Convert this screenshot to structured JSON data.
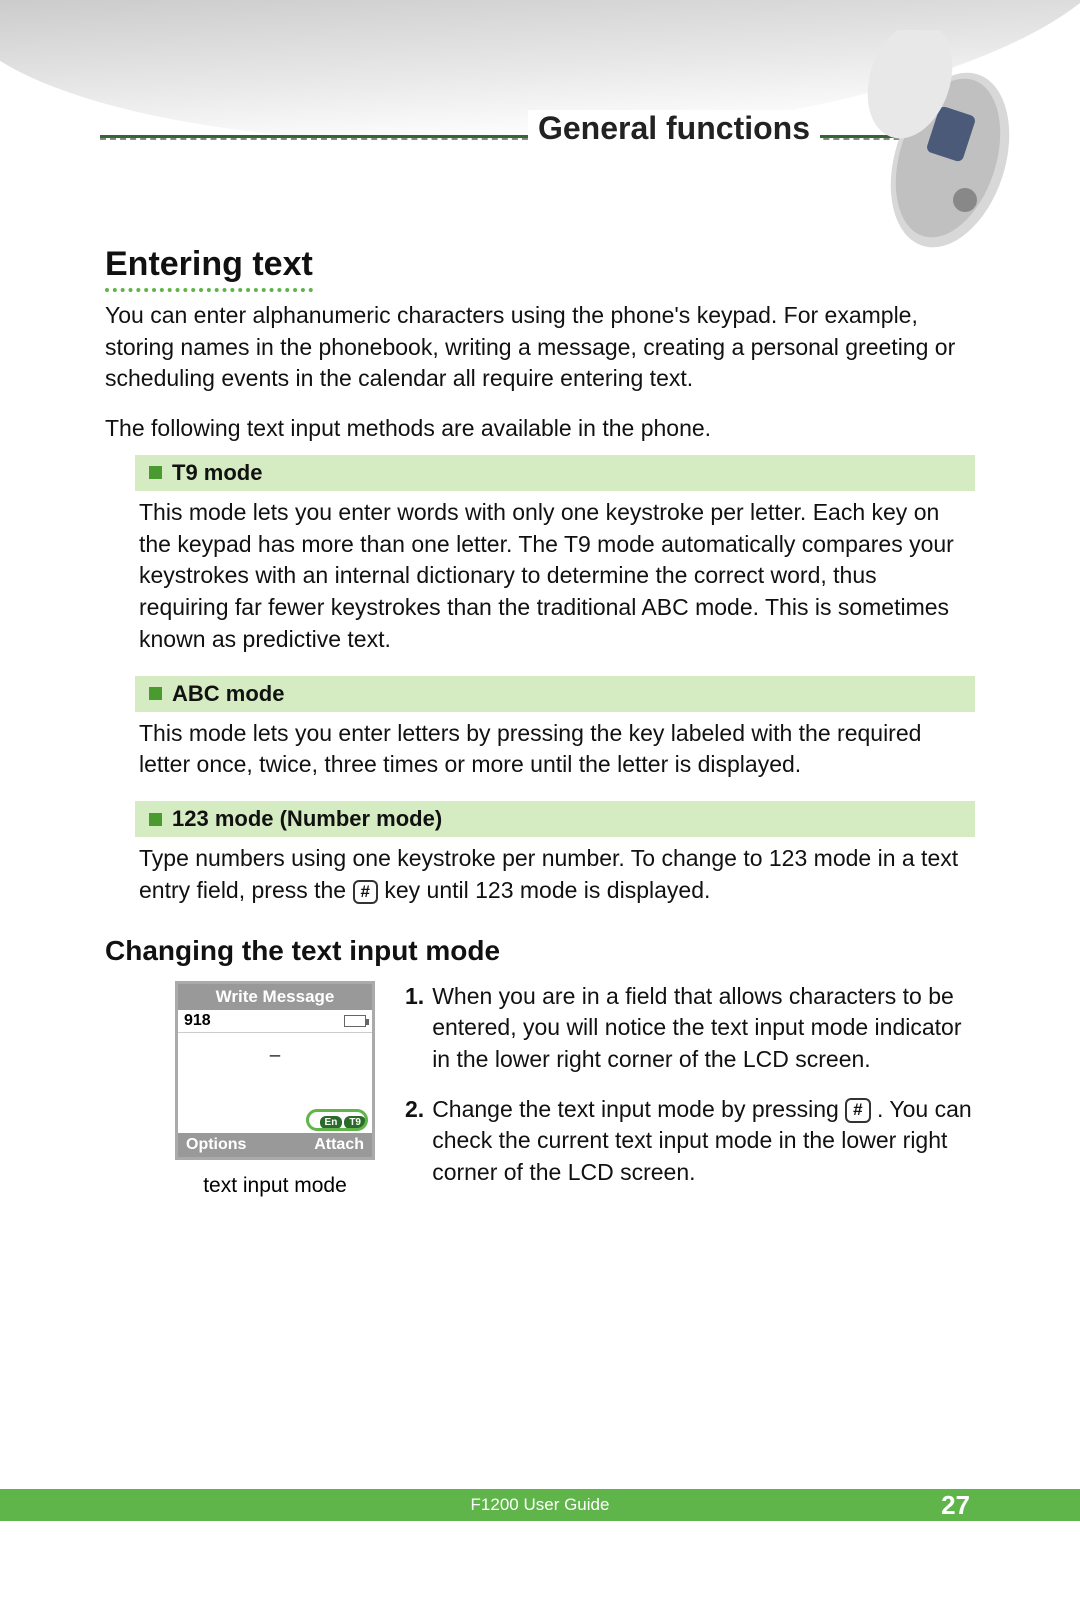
{
  "header": {
    "chapter_title": "General functions"
  },
  "section": {
    "title": "Entering text",
    "intro1": "You can enter alphanumeric characters using the phone's keypad. For example, storing names in the phonebook, writing a message, creating a personal greeting or scheduling events in the calendar all require entering text.",
    "intro2": "The following text input methods are available in the phone."
  },
  "modes": [
    {
      "title": "T9 mode",
      "body": "This mode lets you enter words with only one keystroke per letter. Each key on the keypad has more than one letter. The T9 mode automatically compares your keystrokes with an internal dictionary to determine the correct word, thus requiring far fewer keystrokes than the traditional ABC mode. This is sometimes known as predictive text."
    },
    {
      "title": "ABC mode",
      "body": "This mode lets you enter letters by pressing the key labeled with the required letter once, twice, three times or more until the letter is displayed."
    },
    {
      "title": "123 mode (Number mode)",
      "body_pre": "Type numbers using one keystroke per number. To change to 123 mode in a text entry field, press the ",
      "body_post": " key until 123 mode is displayed.",
      "key_label": "#"
    }
  ],
  "change": {
    "heading": "Changing the text input mode",
    "screen": {
      "title": "Write Message",
      "status_left": "918",
      "cursor": "_",
      "indicator_left": "En",
      "indicator_right": "T9",
      "soft_left": "Options",
      "soft_right": "Attach"
    },
    "caption": "text input mode",
    "steps": [
      {
        "num": "1.",
        "text": "When you are in a field that allows characters to be entered, you will notice the text input mode indicator in the lower right corner of the LCD screen."
      },
      {
        "num": "2.",
        "text_pre": "Change the text input mode by pressing ",
        "key_label": "#",
        "text_post": " . You can check the current text input mode in the lower right corner of the LCD screen."
      }
    ]
  },
  "footer": {
    "guide": "F1200 User Guide",
    "page": "27"
  },
  "colors": {
    "accent_green": "#5fb54a",
    "mode_bg": "#d5ecc2",
    "bullet": "#4a9b2f"
  }
}
